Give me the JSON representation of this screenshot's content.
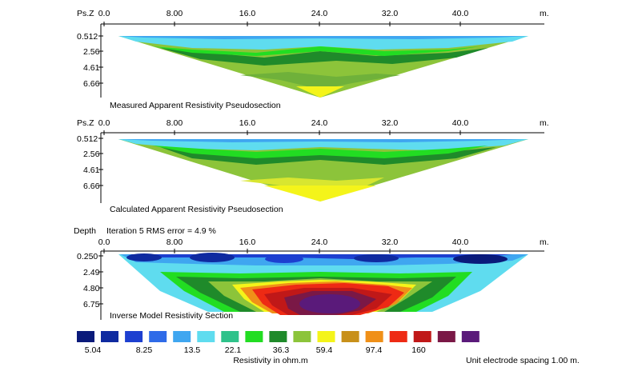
{
  "sections": [
    {
      "id": "measured",
      "depth_header": "Ps.Z",
      "depth_labels": [
        "0.512",
        "2.56",
        "4.61",
        "6.66"
      ],
      "distance_labels": [
        "0.0",
        "8.00",
        "16.0",
        "24.0",
        "32.0",
        "40.0"
      ],
      "unit_label": "m.",
      "caption": "Measured Apparent Resistivity Pseudosection",
      "iteration_text": ""
    },
    {
      "id": "calculated",
      "depth_header": "Ps.Z",
      "depth_labels": [
        "0.512",
        "2.56",
        "4.61",
        "6.66"
      ],
      "distance_labels": [
        "0.0",
        "8.00",
        "16.0",
        "24.0",
        "32.0",
        "40.0"
      ],
      "unit_label": "m.",
      "caption": "Calculated Apparent Resistivity Pseudosection",
      "iteration_text": ""
    },
    {
      "id": "inverse",
      "depth_header": "Depth",
      "depth_labels": [
        "0.250",
        "2.49",
        "4.80",
        "6.75"
      ],
      "distance_labels": [
        "0.0",
        "8.00",
        "16.0",
        "24.0",
        "32.0",
        "40.0"
      ],
      "unit_label": "m.",
      "caption": "Inverse Model Resistivity Section",
      "iteration_text": "Iteration 5 RMS error = 4.9 %"
    }
  ],
  "legend": {
    "colors": [
      "#0a1a7a",
      "#0f2aa0",
      "#1d3fd0",
      "#2f6be8",
      "#3fa6f0",
      "#5fdcef",
      "#2ec28a",
      "#22dd22",
      "#1f8a2a",
      "#8cc43a",
      "#f4f41a",
      "#c8901a",
      "#f09018",
      "#ee2a14",
      "#c01818",
      "#7a1846",
      "#5a1a7a"
    ],
    "values": [
      "5.04",
      "8.25",
      "13.5",
      "22.1",
      "36.3",
      "59.4",
      "97.4",
      "160"
    ],
    "title": "Resistivity in ohm.m",
    "spacing_note": "Unit electrode spacing 1.00 m."
  }
}
